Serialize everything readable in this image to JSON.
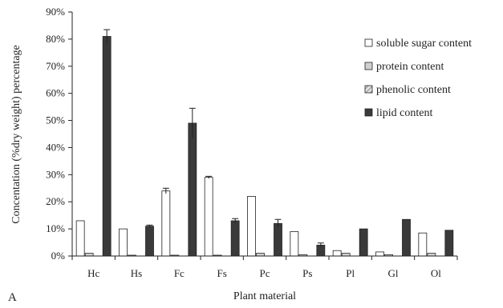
{
  "chart_data": {
    "type": "bar",
    "panel_label": "A",
    "xlabel": "Plant material",
    "ylabel": "Concentation (%dry weight) percentage",
    "ylim": [
      0,
      90
    ],
    "yticks": [
      "0%",
      "10%",
      "20%",
      "30%",
      "40%",
      "50%",
      "60%",
      "70%",
      "80%",
      "90%"
    ],
    "categories": [
      "Hc",
      "Hs",
      "Fc",
      "Fs",
      "Pc",
      "Ps",
      "Pl",
      "Gl",
      "Ol"
    ],
    "legend_position": "right",
    "grid": false,
    "series": [
      {
        "name": "soluble sugar content",
        "fill": "#ffffff",
        "pattern": "none",
        "values": [
          13,
          10,
          24,
          29,
          22,
          9,
          2,
          1.5,
          8.5
        ],
        "errors": [
          0,
          0,
          1,
          0.4,
          0,
          0,
          0,
          0,
          0
        ]
      },
      {
        "name": "protein content",
        "fill": "#d0d0d0",
        "pattern": "none",
        "values": [
          1,
          0.3,
          0.3,
          0.3,
          1,
          0.5,
          1,
          0.5,
          1
        ],
        "errors": [
          0,
          0,
          0,
          0,
          0,
          0,
          0,
          0,
          0
        ]
      },
      {
        "name": "phenolic content",
        "fill": "#bdbdbd",
        "pattern": "hatch",
        "values": [
          0,
          0,
          0,
          0,
          0,
          0,
          0,
          0,
          0
        ],
        "errors": [
          0,
          0,
          0,
          0,
          0,
          0,
          0,
          0,
          0
        ]
      },
      {
        "name": "lipid content",
        "fill": "#3a3a3a",
        "pattern": "none",
        "values": [
          81,
          11,
          49,
          13,
          12,
          4,
          10,
          13.5,
          9.5
        ],
        "errors": [
          2.5,
          0.4,
          5.5,
          0.8,
          1.5,
          0.8,
          0,
          0,
          0
        ]
      }
    ]
  }
}
